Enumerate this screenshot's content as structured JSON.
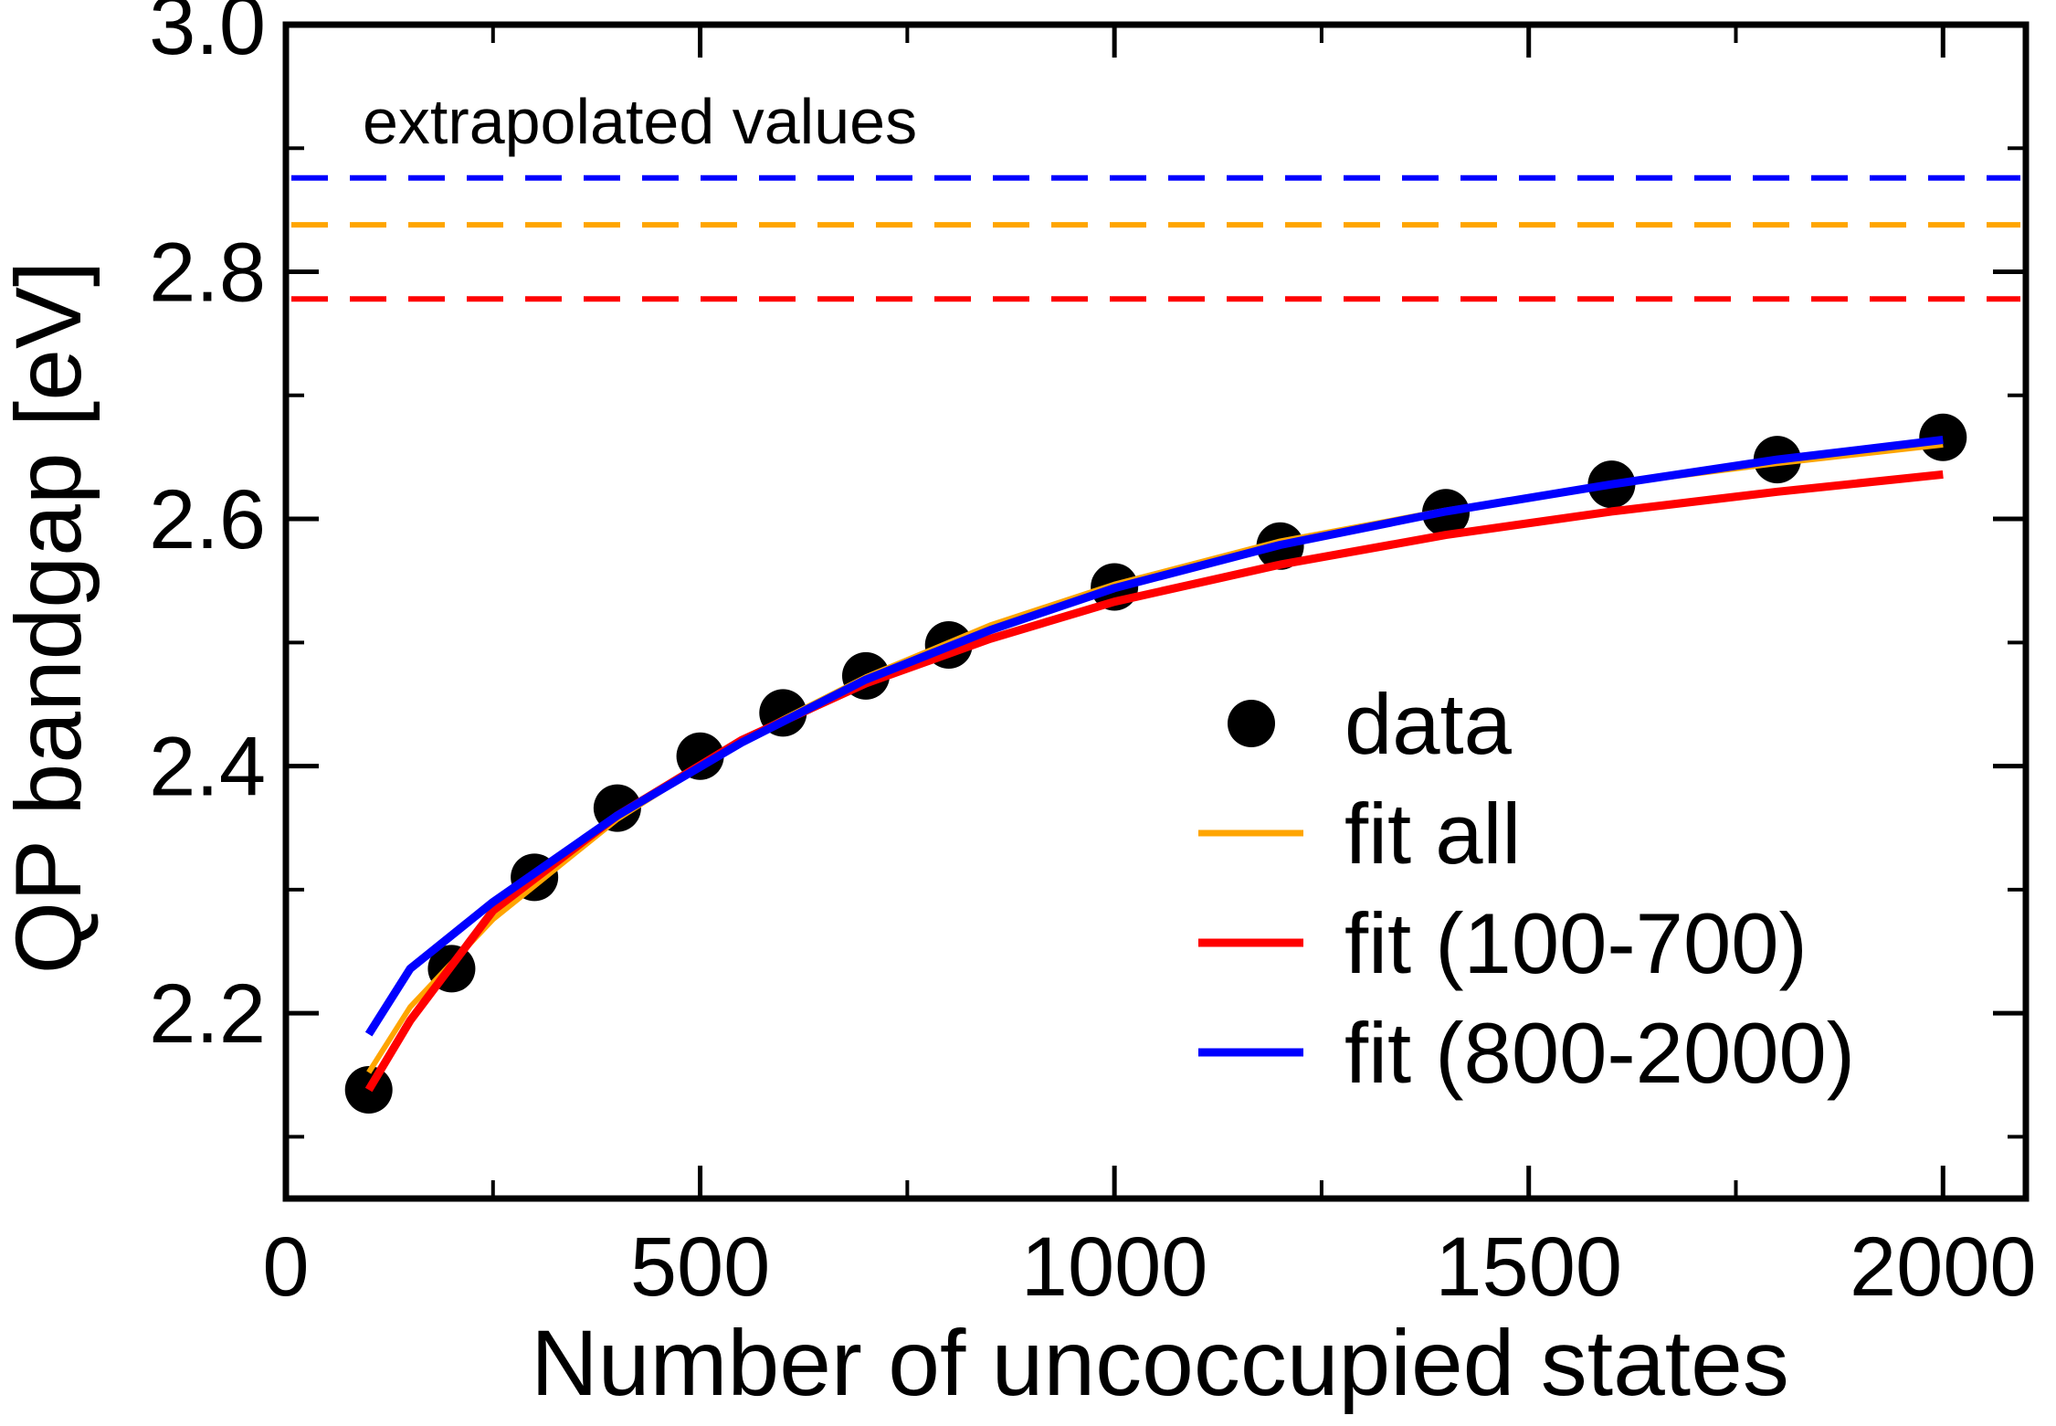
{
  "chart_data": {
    "type": "line",
    "title": "",
    "xlabel": "Number of uncoccupied states",
    "ylabel": "QP bandgap [eV]",
    "xlim": [
      0,
      2100
    ],
    "ylim": [
      2.05,
      3.0
    ],
    "x_ticks": [
      0,
      500,
      1000,
      1500,
      2000
    ],
    "x_tick_labels": [
      "0",
      "500",
      "1000",
      "1500",
      "2000"
    ],
    "y_ticks": [
      2.2,
      2.4,
      2.6,
      2.8,
      3.0
    ],
    "y_tick_labels": [
      "2.2",
      "2.4",
      "2.6",
      "2.8",
      "3.0"
    ],
    "grid": false,
    "legend_position": "center-right",
    "annotation": "extrapolated values",
    "colors": {
      "data": "#000000",
      "fit_all": "#FFA500",
      "fit_100_700": "#FF0000",
      "fit_800_2000": "#0000FF"
    },
    "series": [
      {
        "name": "data",
        "style": "markers",
        "color": "#000000",
        "x": [
          100,
          200,
          300,
          400,
          500,
          600,
          700,
          800,
          1000,
          1200,
          1400,
          1600,
          1800,
          2000
        ],
        "y": [
          2.138,
          2.236,
          2.31,
          2.366,
          2.408,
          2.443,
          2.473,
          2.498,
          2.545,
          2.578,
          2.605,
          2.628,
          2.648,
          2.666
        ]
      },
      {
        "name": "fit all",
        "style": "line",
        "color": "#FFA500",
        "x": [
          100,
          150,
          250,
          400,
          550,
          700,
          850,
          1000,
          1200,
          1400,
          1600,
          1800,
          2000
        ],
        "y": [
          2.152,
          2.205,
          2.276,
          2.357,
          2.421,
          2.472,
          2.514,
          2.547,
          2.582,
          2.607,
          2.628,
          2.645,
          2.66
        ]
      },
      {
        "name": "fit (100-700)",
        "style": "line",
        "color": "#FF0000",
        "x": [
          100,
          150,
          250,
          400,
          550,
          700,
          850,
          1000,
          1200,
          1400,
          1600,
          1800,
          2000
        ],
        "y": [
          2.138,
          2.194,
          2.283,
          2.36,
          2.421,
          2.467,
          2.503,
          2.533,
          2.563,
          2.587,
          2.606,
          2.622,
          2.636
        ]
      },
      {
        "name": "fit (800-2000)",
        "style": "line",
        "color": "#0000FF",
        "x": [
          100,
          150,
          250,
          400,
          550,
          700,
          850,
          1000,
          1200,
          1400,
          1600,
          1800,
          2000
        ],
        "y": [
          2.183,
          2.236,
          2.29,
          2.36,
          2.419,
          2.47,
          2.51,
          2.544,
          2.579,
          2.606,
          2.628,
          2.648,
          2.664
        ]
      },
      {
        "name": "extrapolated fit (800-2000)",
        "style": "dashed",
        "color": "#0000FF",
        "value": 2.876
      },
      {
        "name": "extrapolated fit all",
        "style": "dashed",
        "color": "#FFA500",
        "value": 2.838
      },
      {
        "name": "extrapolated fit (100-700)",
        "style": "dashed",
        "color": "#FF0000",
        "value": 2.778
      }
    ]
  }
}
